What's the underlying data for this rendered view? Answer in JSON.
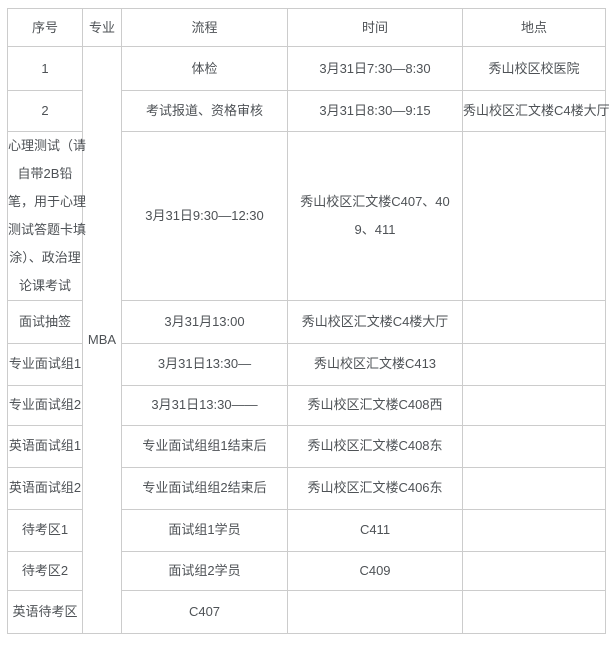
{
  "page": {
    "background_color": "#ffffff",
    "text_color": "#4e5256",
    "border_color": "#cccccc"
  },
  "table": {
    "headers": [
      "序号",
      "专业",
      "流程",
      "时间",
      "地点"
    ],
    "major_value": "MBA",
    "rows": [
      {
        "c1": "1",
        "c3": "体检",
        "c4": "3月31日7:30—8:30",
        "c5": "秀山校区校医院"
      },
      {
        "c1": "2",
        "c3": "考试报道、资格审核",
        "c4": "3月31日8:30—9:15",
        "c5": "秀山校区汇文楼C4楼大厅"
      },
      {
        "c1": "心理测试（请\n自带2B铅\n笔，用于心理\n测试答题卡填\n涂）、政治理\n论课考试",
        "c3": "3月31日9:30—12:30",
        "c4": "秀山校区汇文楼C407、40\n9、411",
        "c5": ""
      },
      {
        "c1": "面试抽签",
        "c3": "3月31月13:00",
        "c4": "秀山校区汇文楼C4楼大厅",
        "c5": ""
      },
      {
        "c1": "专业面试组1",
        "c3": "3月31日13:30—",
        "c4": "秀山校区汇文楼C413",
        "c5": ""
      },
      {
        "c1": "专业面试组2",
        "c3": "3月31日13:30——",
        "c4": "秀山校区汇文楼C408西",
        "c5": ""
      },
      {
        "c1": "英语面试组1",
        "c3": "专业面试组组1结束后",
        "c4": "秀山校区汇文楼C408东",
        "c5": ""
      },
      {
        "c1": "英语面试组2",
        "c3": "专业面试组组2结束后",
        "c4": "秀山校区汇文楼C406东",
        "c5": ""
      },
      {
        "c1": "待考区1",
        "c3": "面试组1学员",
        "c4": "C411",
        "c5": ""
      },
      {
        "c1": "待考区2",
        "c3": "面试组2学员",
        "c4": "C409",
        "c5": ""
      },
      {
        "c1": "英语待考区",
        "c3": "C407",
        "c4": "",
        "c5": ""
      }
    ]
  }
}
